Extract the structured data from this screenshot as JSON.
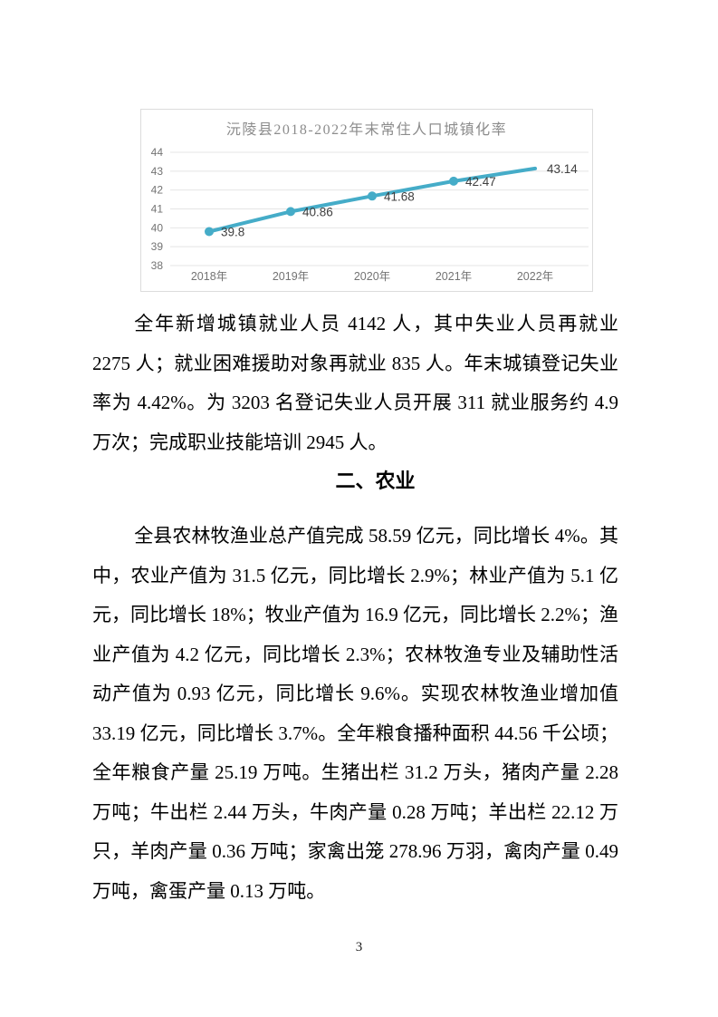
{
  "page": {
    "number": "3"
  },
  "chart_data": {
    "type": "line",
    "title": "沅陵县2018-2022年末常住人口城镇化率",
    "categories": [
      "2018年",
      "2019年",
      "2020年",
      "2021年",
      "2022年"
    ],
    "values": [
      39.8,
      40.86,
      41.68,
      42.47,
      43.14
    ],
    "labels": [
      "39.8",
      "40.86",
      "41.68",
      "42.47",
      "43.14"
    ],
    "ylabel": "",
    "xlabel": "",
    "ylim": [
      38,
      44
    ],
    "ytick_step": 1,
    "grid": true,
    "legend": "none",
    "line_color": "#45acc8",
    "grid_color": "#e4e4e4",
    "tick_color": "#737373",
    "label_color": "#3f3f3f"
  },
  "sections": {
    "employment_paragraph": "全年新增城镇就业人员 4142 人，其中失业人员再就业 2275 人；就业困难援助对象再就业 835 人。年末城镇登记失业率为 4.42%。为 3203 名登记失业人员开展 311 就业服务约 4.9 万次；完成职业技能培训 2945 人。",
    "agriculture_heading": "二、农业",
    "agriculture_paragraph": "全县农林牧渔业总产值完成 58.59 亿元，同比增长 4%。其中，农业产值为 31.5 亿元，同比增长 2.9%；林业产值为 5.1 亿元，同比增长 18%；牧业产值为 16.9 亿元，同比增长 2.2%；渔业产值为 4.2 亿元，同比增长 2.3%；农林牧渔专业及辅助性活动产值为 0.93 亿元，同比增长 9.6%。实现农林牧渔业增加值 33.19 亿元，同比增长 3.7%。全年粮食播种面积 44.56 千公顷；全年粮食产量 25.19 万吨。生猪出栏 31.2 万头，猪肉产量 2.28 万吨；牛出栏 2.44 万头，牛肉产量 0.28 万吨；羊出栏 22.12 万只，羊肉产量 0.36 万吨；家禽出笼 278.96 万羽，禽肉产量 0.49 万吨，禽蛋产量 0.13 万吨。"
  }
}
